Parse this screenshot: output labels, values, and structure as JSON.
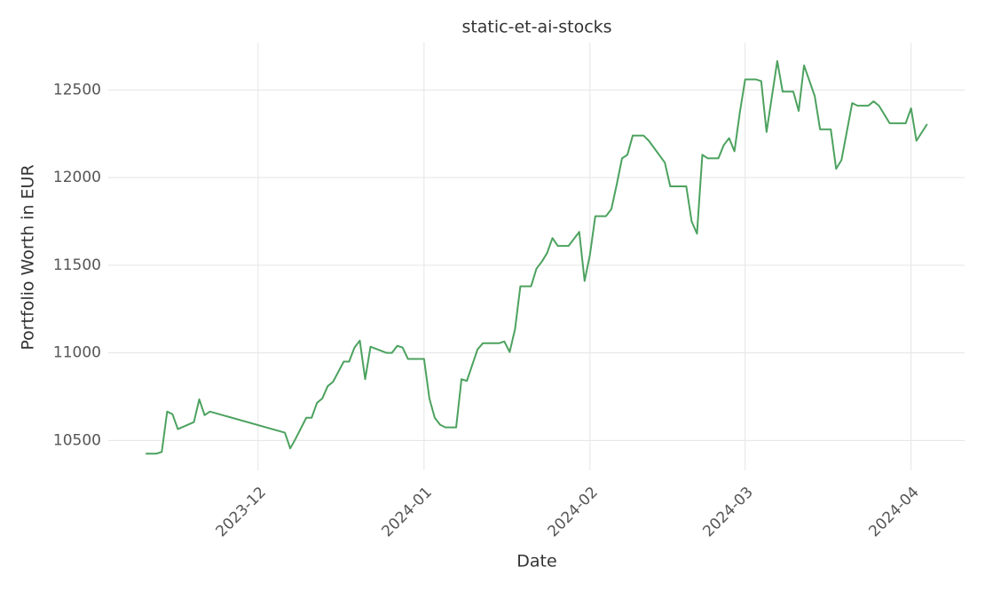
{
  "chart_data": {
    "type": "line",
    "title": "static-et-ai-stocks",
    "x_label": "Date",
    "y_label": "Portfolio Worth in EUR",
    "x": [
      -21,
      -19,
      -18,
      -17,
      -16,
      -15,
      -12,
      -11,
      -10,
      -9,
      5,
      6,
      7,
      9,
      10,
      11,
      12,
      13,
      14,
      16,
      17,
      18,
      19,
      20,
      21,
      24,
      25,
      26,
      27,
      28,
      31,
      32,
      33,
      34,
      35,
      37,
      38,
      39,
      41,
      42,
      45,
      46,
      47,
      48,
      49,
      51,
      52,
      53,
      54,
      55,
      56,
      58,
      60,
      61,
      62,
      63,
      65,
      66,
      67,
      68,
      69,
      70,
      72,
      73,
      76,
      77,
      80,
      81,
      82,
      83,
      84,
      86,
      87,
      88,
      89,
      90,
      91,
      93,
      94,
      95,
      97,
      98,
      100,
      101,
      102,
      104,
      105,
      107,
      108,
      109,
      111,
      112,
      114,
      115,
      116,
      118,
      121,
      122,
      123,
      125
    ],
    "series": [
      {
        "name": "static-et-ai-stocks",
        "color": "#4ca25f",
        "values": [
          10425,
          10425,
          10435,
          10665,
          10650,
          10565,
          10605,
          10735,
          10645,
          10665,
          10545,
          10455,
          10510,
          10630,
          10630,
          10715,
          10740,
          10810,
          10835,
          10950,
          10950,
          11030,
          11070,
          10850,
          11035,
          11000,
          11000,
          11040,
          11030,
          10965,
          10965,
          10740,
          10630,
          10590,
          10575,
          10575,
          10850,
          10840,
          11020,
          11055,
          11055,
          11065,
          11005,
          11135,
          11380,
          11380,
          11480,
          11520,
          11570,
          11655,
          11610,
          11610,
          11690,
          11410,
          11560,
          11780,
          11780,
          11820,
          11960,
          12110,
          12130,
          12240,
          12240,
          12210,
          12085,
          11950,
          11950,
          11750,
          11680,
          12130,
          12110,
          12110,
          12185,
          12225,
          12150,
          12370,
          12560,
          12560,
          12550,
          12260,
          12665,
          12490,
          12490,
          12380,
          12640,
          12465,
          12275,
          12275,
          12050,
          12100,
          12425,
          12410,
          12410,
          12435,
          12410,
          12310,
          12310,
          12395,
          12210,
          12305
        ]
      }
    ],
    "xlim": [
      -28,
      132
    ],
    "xticks": [
      {
        "value": 0,
        "label": "2023-12"
      },
      {
        "value": 31,
        "label": "2024-01"
      },
      {
        "value": 62,
        "label": "2024-02"
      },
      {
        "value": 91,
        "label": "2024-03"
      },
      {
        "value": 122,
        "label": "2024-04"
      }
    ],
    "ylim": [
      10330,
      12770
    ],
    "yticks": [
      10500,
      11000,
      11500,
      12000,
      12500
    ],
    "grid": true
  }
}
